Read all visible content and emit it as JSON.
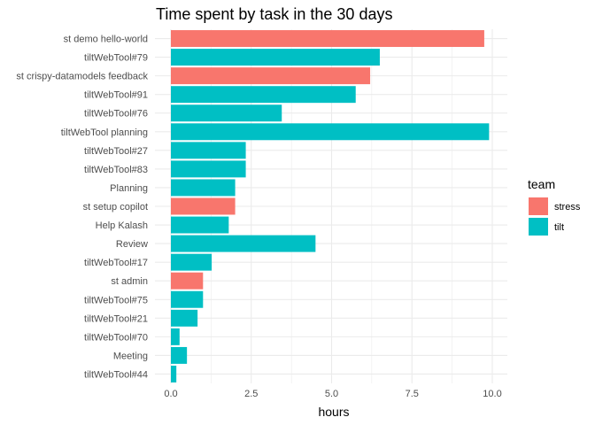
{
  "chart_data": {
    "type": "bar",
    "orientation": "horizontal",
    "title": "Time spent by task in the 30 days",
    "xlabel": "hours",
    "ylabel": "",
    "xlim": [
      0,
      10
    ],
    "x_ticks": [
      "0.0",
      "2.5",
      "5.0",
      "7.5",
      "10.0"
    ],
    "x_tick_values": [
      0,
      2.5,
      5,
      7.5,
      10
    ],
    "grid": true,
    "legend": {
      "title": "team",
      "placement": "right",
      "entries": [
        {
          "name": "stress",
          "color": "#F8766D"
        },
        {
          "name": "tilt",
          "color": "#00BFC4"
        }
      ]
    },
    "categories": [
      "st demo hello-world",
      "tiltWebTool#79",
      "st crispy-datamodels feedback",
      "tiltWebTool#91",
      "tiltWebTool#76",
      "tiltWebTool planning",
      "tiltWebTool#27",
      "tiltWebTool#83",
      "Planning",
      "st setup copilot",
      "Help Kalash",
      "Review",
      "tiltWebTool#17",
      "st admin",
      "tiltWebTool#75",
      "tiltWebTool#21",
      "tiltWebTool#70",
      "Meeting",
      "tiltWebTool#44"
    ],
    "values": [
      9.75,
      6.5,
      6.2,
      5.75,
      3.45,
      9.9,
      2.33,
      2.33,
      2.0,
      2.0,
      1.8,
      4.5,
      1.27,
      1.0,
      1.0,
      0.83,
      0.27,
      0.5,
      0.17
    ],
    "teams": [
      "stress",
      "tilt",
      "stress",
      "tilt",
      "tilt",
      "tilt",
      "tilt",
      "tilt",
      "tilt",
      "stress",
      "tilt",
      "tilt",
      "tilt",
      "stress",
      "tilt",
      "tilt",
      "tilt",
      "tilt",
      "tilt"
    ]
  }
}
